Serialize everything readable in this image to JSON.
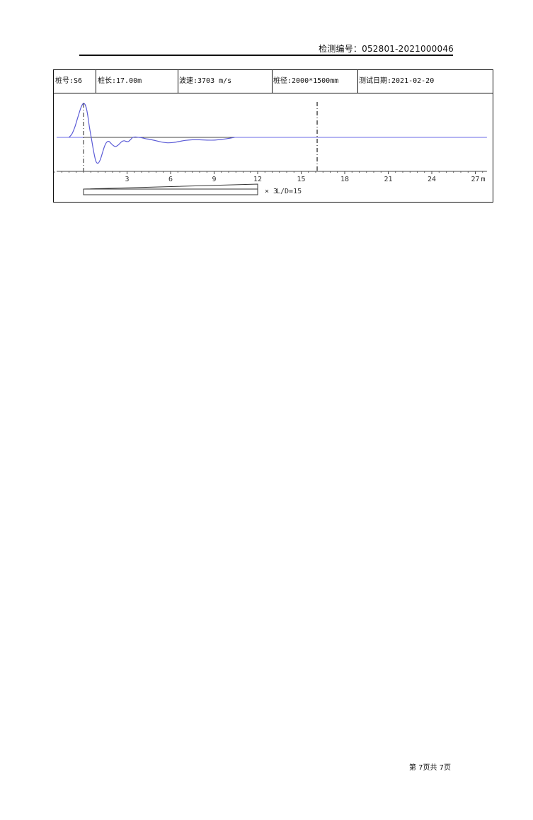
{
  "header": {
    "report_no": "检测编号：052801-2021000046"
  },
  "info": {
    "pile_no": "桩号:S6",
    "pile_length": "桩长:17.00m",
    "wave_speed": "波速:3703 m/s",
    "pile_diameter": "桩径:2000*1500mm",
    "test_date": "测试日期:2021-02-20"
  },
  "chart_data": {
    "type": "line",
    "xlabel": "m",
    "xlim": [
      -2,
      27.8
    ],
    "ticks": [
      3,
      6,
      9,
      12,
      15,
      18,
      21,
      24,
      27
    ],
    "tick_labels": [
      "3",
      "6",
      "9",
      "12",
      "15",
      "18",
      "21",
      "24",
      "27"
    ],
    "minor_tick_step": 0.5,
    "pile_top_marker": 0,
    "pile_toe_marker": 16.1,
    "amplification_label": "× 3",
    "ratio_label": "L/D=15",
    "amplification_start": 0,
    "amplification_end": 12,
    "colors": {
      "signal": "#5b5bd6",
      "baseline": "#6a6ae6",
      "axis": "#444444",
      "marker": "#222222"
    },
    "series": [
      {
        "x": [
          -1.0,
          -0.8,
          -0.6,
          -0.4,
          -0.2,
          -0.1,
          0.0,
          0.1,
          0.2,
          0.3,
          0.4,
          0.55,
          0.7,
          0.85,
          1.0,
          1.15,
          1.3,
          1.45,
          1.6,
          1.75,
          1.9,
          2.05,
          2.2,
          2.35,
          2.5,
          2.65,
          2.8,
          2.95,
          3.1,
          3.25,
          3.4,
          3.6,
          3.8,
          4.0,
          4.3,
          4.6,
          5.0,
          5.4,
          5.8,
          6.2,
          6.6,
          7.0,
          7.5,
          8.0,
          8.5,
          9.0,
          9.5,
          10.0,
          10.4
        ],
        "y": [
          0.0,
          0.1,
          0.3,
          0.58,
          0.85,
          0.95,
          1.0,
          0.97,
          0.85,
          0.62,
          0.32,
          -0.05,
          -0.42,
          -0.7,
          -0.76,
          -0.66,
          -0.46,
          -0.26,
          -0.14,
          -0.12,
          -0.18,
          -0.24,
          -0.27,
          -0.24,
          -0.18,
          -0.12,
          -0.1,
          -0.12,
          -0.12,
          -0.06,
          0.0,
          0.01,
          0.0,
          -0.01,
          -0.04,
          -0.06,
          -0.1,
          -0.14,
          -0.16,
          -0.15,
          -0.12,
          -0.09,
          -0.07,
          -0.07,
          -0.08,
          -0.08,
          -0.06,
          -0.03,
          0.0
        ]
      }
    ]
  },
  "footer": {
    "page_info": "第 7页共 7页"
  }
}
